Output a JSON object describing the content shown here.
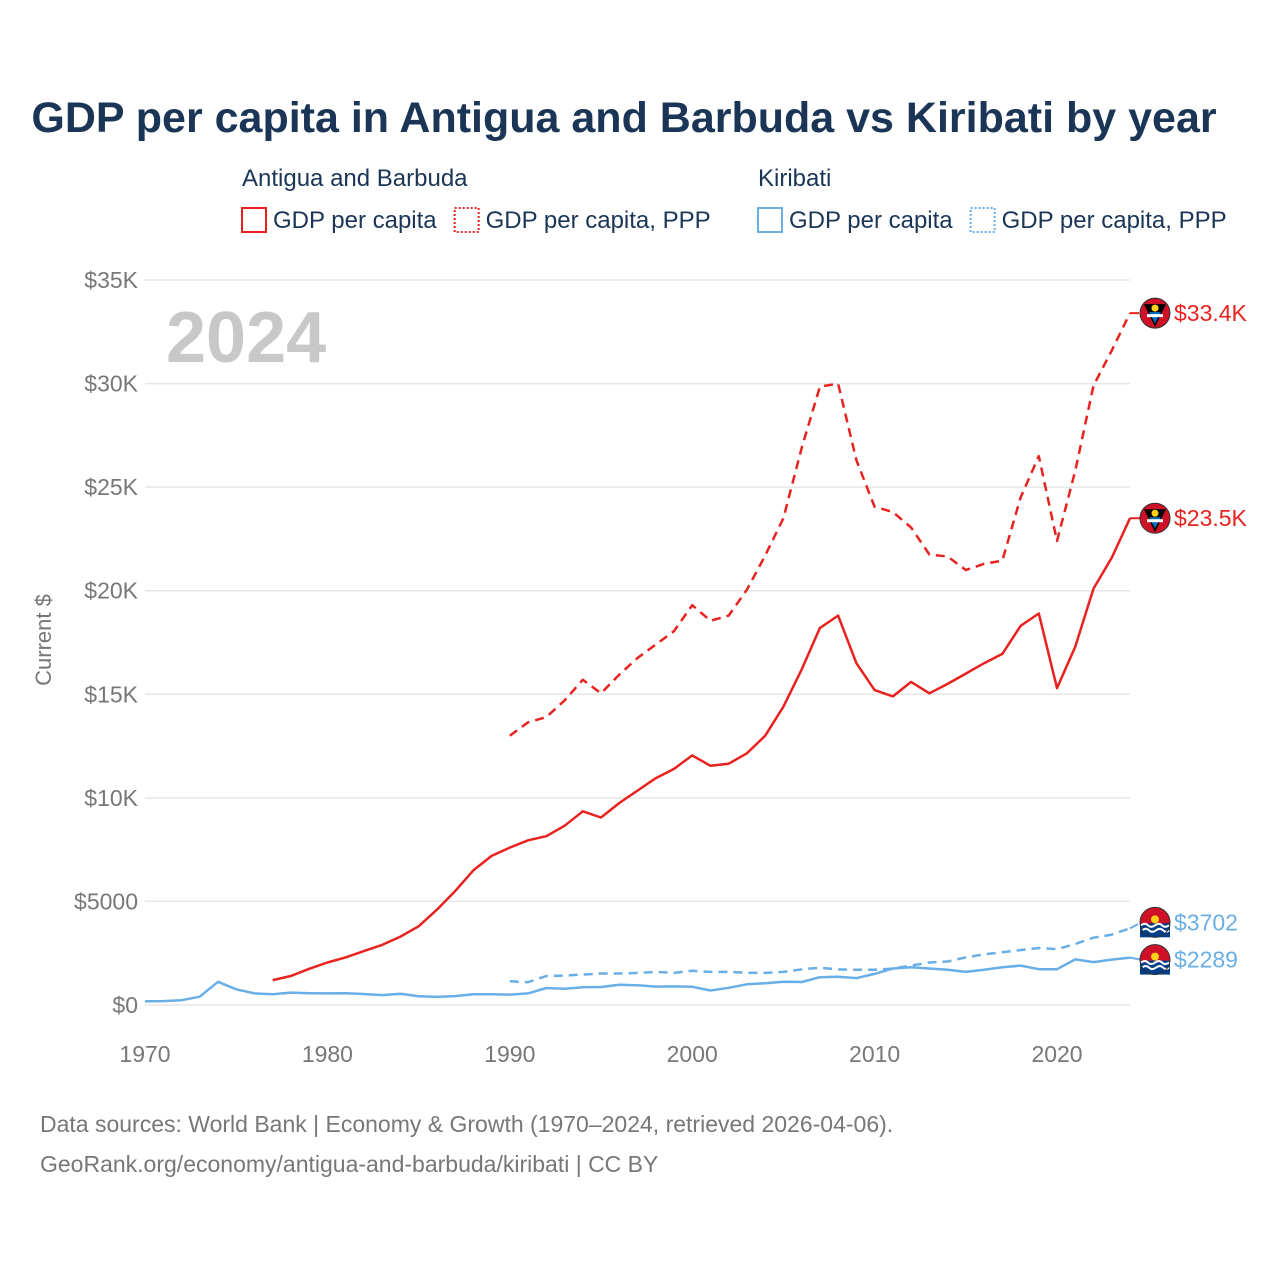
{
  "chart_data": {
    "type": "line",
    "title": "GDP per capita in Antigua and Barbuda vs Kiribati by year",
    "ylabel": "Current $",
    "xlabel": "",
    "year_watermark": "2024",
    "xlim": [
      1970,
      2024
    ],
    "ylim": [
      0,
      35000
    ],
    "x_ticks": [
      1970,
      1980,
      1990,
      2000,
      2010,
      2020
    ],
    "x_tick_labels": [
      "1970",
      "1980",
      "1990",
      "2000",
      "2010",
      "2020"
    ],
    "y_ticks": [
      0,
      5000,
      10000,
      15000,
      20000,
      25000,
      30000,
      35000
    ],
    "y_tick_labels": [
      "$0",
      "$5000",
      "$10K",
      "$15K",
      "$20K",
      "$25K",
      "$30K",
      "$35K"
    ],
    "legend": {
      "groups": [
        {
          "country": "Antigua and Barbuda",
          "color": "#e8221f",
          "entries": [
            {
              "label": "GDP per capita",
              "style": "solid"
            },
            {
              "label": "GDP per capita, PPP",
              "style": "dotted"
            }
          ]
        },
        {
          "country": "Kiribati",
          "color": "#6aaee6",
          "entries": [
            {
              "label": "GDP per capita",
              "style": "solid"
            },
            {
              "label": "GDP per capita, PPP",
              "style": "dotted"
            }
          ]
        }
      ]
    },
    "series": [
      {
        "name": "Antigua and Barbuda — GDP per capita",
        "color": "#e8221f",
        "dash": false,
        "end_label": "$23.5K",
        "x": [
          1977,
          1978,
          1979,
          1980,
          1981,
          1982,
          1983,
          1984,
          1985,
          1986,
          1987,
          1988,
          1989,
          1990,
          1991,
          1992,
          1993,
          1994,
          1995,
          1996,
          1997,
          1998,
          1999,
          2000,
          2001,
          2002,
          2003,
          2004,
          2005,
          2006,
          2007,
          2008,
          2009,
          2010,
          2011,
          2012,
          2013,
          2014,
          2015,
          2016,
          2017,
          2018,
          2019,
          2020,
          2021,
          2022,
          2023,
          2024
        ],
        "values": [
          1200,
          1400,
          1750,
          2050,
          2300,
          2600,
          2900,
          3300,
          3800,
          4600,
          5500,
          6500,
          7200,
          7600,
          7950,
          8150,
          8650,
          9350,
          9050,
          9750,
          10350,
          10950,
          11400,
          12050,
          11550,
          11650,
          12150,
          13000,
          14400,
          16200,
          18200,
          18800,
          16500,
          15200,
          14900,
          15600,
          15050,
          15500,
          16000,
          16500,
          16950,
          18300,
          18900,
          15300,
          17300,
          20100,
          21600,
          23500
        ]
      },
      {
        "name": "Antigua and Barbuda — GDP per capita, PPP",
        "color": "#e8221f",
        "dash": true,
        "end_label": "$33.4K",
        "x": [
          1990,
          1991,
          1992,
          1993,
          1994,
          1995,
          1996,
          1997,
          1998,
          1999,
          2000,
          2001,
          2002,
          2003,
          2004,
          2005,
          2006,
          2007,
          2008,
          2009,
          2010,
          2011,
          2012,
          2013,
          2014,
          2015,
          2016,
          2017,
          2018,
          2019,
          2020,
          2021,
          2022,
          2023,
          2024
        ],
        "values": [
          13000,
          13650,
          13900,
          14700,
          15700,
          15050,
          15950,
          16750,
          17400,
          18050,
          19300,
          18550,
          18800,
          20050,
          21700,
          23500,
          26900,
          29850,
          30000,
          26300,
          24050,
          23800,
          23050,
          21750,
          21650,
          21000,
          21300,
          21450,
          24500,
          26500,
          22400,
          25800,
          29900,
          31600,
          33400
        ]
      },
      {
        "name": "Kiribati — GDP per capita",
        "color": "#6aaee6",
        "dash": false,
        "end_label": "$2289",
        "x": [
          1970,
          1971,
          1972,
          1973,
          1974,
          1975,
          1976,
          1977,
          1978,
          1979,
          1980,
          1981,
          1982,
          1983,
          1984,
          1985,
          1986,
          1987,
          1988,
          1989,
          1990,
          1991,
          1992,
          1993,
          1994,
          1995,
          1996,
          1997,
          1998,
          1999,
          2000,
          2001,
          2002,
          2003,
          2004,
          2005,
          2006,
          2007,
          2008,
          2009,
          2010,
          2011,
          2012,
          2013,
          2014,
          2015,
          2016,
          2017,
          2018,
          2019,
          2020,
          2021,
          2022,
          2023,
          2024
        ],
        "values": [
          180,
          190,
          230,
          400,
          1120,
          760,
          560,
          520,
          600,
          570,
          560,
          570,
          530,
          480,
          540,
          420,
          390,
          430,
          520,
          520,
          500,
          560,
          820,
          780,
          860,
          870,
          980,
          950,
          890,
          900,
          880,
          700,
          830,
          1000,
          1050,
          1120,
          1110,
          1340,
          1360,
          1300,
          1500,
          1760,
          1820,
          1760,
          1700,
          1600,
          1700,
          1820,
          1900,
          1730,
          1730,
          2200,
          2070,
          2190,
          2289
        ]
      },
      {
        "name": "Kiribati — GDP per capita, PPP",
        "color": "#6aaee6",
        "dash": true,
        "end_label": "$3702",
        "x": [
          1990,
          1991,
          1992,
          1993,
          1994,
          1995,
          1996,
          1997,
          1998,
          1999,
          2000,
          2001,
          2002,
          2003,
          2004,
          2005,
          2006,
          2007,
          2008,
          2009,
          2010,
          2011,
          2012,
          2013,
          2014,
          2015,
          2016,
          2017,
          2018,
          2019,
          2020,
          2021,
          2022,
          2023,
          2024
        ],
        "values": [
          1150,
          1100,
          1400,
          1420,
          1470,
          1520,
          1520,
          1550,
          1600,
          1550,
          1650,
          1600,
          1600,
          1560,
          1550,
          1600,
          1720,
          1800,
          1720,
          1700,
          1700,
          1760,
          1900,
          2050,
          2100,
          2300,
          2450,
          2550,
          2650,
          2750,
          2700,
          2950,
          3250,
          3400,
          3702
        ]
      }
    ]
  },
  "footer": {
    "line1": "Data sources: World Bank | Economy & Growth (1970–2024, retrieved 2026-04-06).",
    "line2": "GeoRank.org/economy/antigua-and-barbuda/kiribati | CC BY"
  }
}
